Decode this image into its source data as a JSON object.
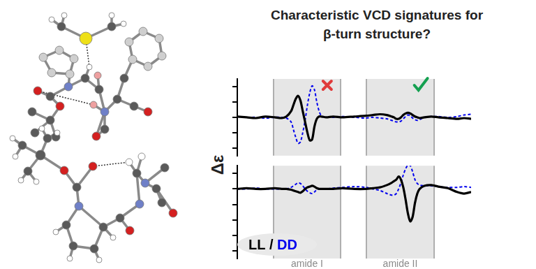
{
  "chart_data": {
    "type": "line",
    "title": [
      "Characteristic VCD signatures for",
      "β-turn structure?"
    ],
    "y_label": "Δε",
    "annotations": [
      "LL / DD"
    ],
    "legend": "lower left",
    "grid": false,
    "tick_labels": false,
    "xlim": [
      0,
      100
    ],
    "x": [
      0,
      4,
      8,
      12,
      16,
      19,
      21,
      23,
      24,
      25,
      26,
      27,
      28,
      29,
      30,
      31,
      32,
      33,
      34,
      35,
      36,
      38,
      41,
      45,
      50,
      55,
      58,
      61,
      64,
      66,
      67,
      68,
      69,
      70,
      71,
      72,
      73,
      74,
      75,
      76,
      77,
      78,
      80,
      83,
      86,
      90,
      94,
      97,
      100
    ],
    "regions": [
      {
        "label": "amide I",
        "x": [
          15.5,
          44.2
        ],
        "marker": "cross"
      },
      {
        "label": "amide II",
        "x": [
          55.2,
          84.2
        ],
        "marker": "check"
      }
    ],
    "panels": [
      {
        "ylim": [
          -2.5,
          2.5
        ],
        "yticks": [
          -2,
          -1,
          0,
          1,
          2
        ],
        "series": [
          {
            "name": "LL",
            "color": "#000000",
            "line_style": "solid",
            "values": [
              0.05,
              0,
              -0.05,
              0.05,
              0,
              -0.05,
              0.05,
              0.4,
              0.8,
              1.2,
              1.4,
              1.1,
              0.4,
              -0.3,
              -1.0,
              -1.5,
              -1.45,
              -0.6,
              -0.1,
              0.05,
              0.05,
              0,
              0.05,
              0,
              0.05,
              0.1,
              0.15,
              0.2,
              0.15,
              0.05,
              0,
              -0.1,
              -0.1,
              0,
              0.15,
              0.25,
              0.3,
              0.25,
              0.15,
              0.05,
              0,
              -0.05,
              0,
              0.05,
              0,
              -0.05,
              -0.1,
              -0.05,
              -0.1
            ]
          },
          {
            "name": "DD",
            "color": "#0000ee",
            "line_style": "dashed",
            "values": [
              0.05,
              0,
              0,
              -0.05,
              0,
              0,
              -0.05,
              -0.3,
              -0.8,
              -1.3,
              -1.7,
              -1.6,
              -1.0,
              -0.2,
              0.8,
              1.6,
              2.05,
              1.8,
              1.0,
              0.4,
              0.1,
              0,
              0,
              0.05,
              0,
              -0.05,
              0,
              -0.05,
              -0.1,
              -0.2,
              -0.25,
              -0.3,
              -0.3,
              -0.25,
              -0.1,
              0.05,
              0.15,
              0.1,
              -0.05,
              -0.15,
              -0.2,
              -0.15,
              0,
              0.05,
              0.05,
              0,
              0.05,
              0.15,
              0.2
            ]
          }
        ]
      },
      {
        "ylim": [
          -4.5,
          1.5
        ],
        "yticks": [
          -4,
          -3,
          -2,
          -1,
          0,
          1
        ],
        "series": [
          {
            "name": "LL",
            "color": "#000000",
            "line_style": "solid",
            "values": [
              0,
              0.05,
              0,
              0,
              0.05,
              0,
              0,
              -0.05,
              -0.1,
              -0.15,
              -0.2,
              -0.25,
              -0.15,
              0,
              0.1,
              0.15,
              0.2,
              0.15,
              0.05,
              0,
              0,
              0,
              0,
              0.05,
              0,
              0,
              0.05,
              0.1,
              0.25,
              0.4,
              0.5,
              0.6,
              0.8,
              0.6,
              0.1,
              -0.7,
              -1.6,
              -2.1,
              -1.8,
              -0.9,
              -0.3,
              0,
              0.2,
              0.25,
              0.15,
              0.05,
              -0.2,
              -0.3,
              -0.2
            ]
          },
          {
            "name": "DD",
            "color": "#0000ee",
            "line_style": "dashed",
            "values": [
              0,
              0,
              0.05,
              0,
              0,
              0,
              0,
              0.1,
              0.2,
              0.3,
              0.4,
              0.35,
              0.2,
              0,
              -0.15,
              -0.25,
              -0.3,
              -0.2,
              -0.05,
              0,
              0,
              0,
              0.05,
              0.1,
              0.15,
              0.1,
              0,
              -0.1,
              -0.3,
              -0.4,
              -0.4,
              -0.3,
              0,
              0.4,
              0.9,
              1.3,
              1.55,
              1.5,
              1.1,
              0.6,
              0.35,
              0.25,
              0.2,
              0.2,
              0.15,
              0.1,
              0.1,
              0.15,
              0.1
            ]
          }
        ]
      }
    ]
  }
}
